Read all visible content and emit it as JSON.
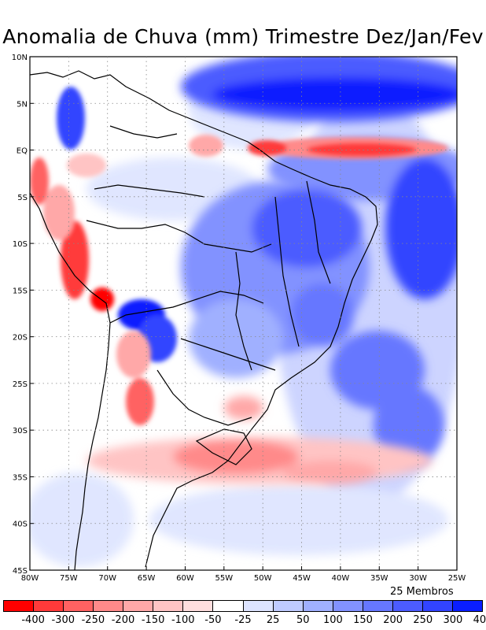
{
  "title": "Anomalia de Chuva (mm) Trimestre Dez/Jan/Fev",
  "members_label": "25 Membros",
  "map": {
    "lon_labels": [
      "80W",
      "75W",
      "70W",
      "65W",
      "60W",
      "55W",
      "50W",
      "45W",
      "40W",
      "35W",
      "30W",
      "25W"
    ],
    "lat_labels": [
      "10N",
      "5N",
      "EQ",
      "5S",
      "10S",
      "15S",
      "20S",
      "25S",
      "30S",
      "35S",
      "40S",
      "45S"
    ],
    "lon_range": [
      -80,
      -25
    ],
    "lat_range": [
      -45,
      10
    ]
  },
  "legend": {
    "colors": [
      "#ff0000",
      "#ff3a3a",
      "#ff6262",
      "#ff8a8a",
      "#ffa8a8",
      "#ffc4c4",
      "#ffdede",
      "#ffffff",
      "#dde4ff",
      "#bfcbff",
      "#a0b0ff",
      "#8292ff",
      "#6677ff",
      "#4c5cff",
      "#3244ff",
      "#0a1eff"
    ],
    "ticks": [
      "-400",
      "-300",
      "-250",
      "-200",
      "-150",
      "-100",
      "-50",
      "-25",
      "25",
      "50",
      "100",
      "150",
      "200",
      "250",
      "300",
      "400"
    ]
  },
  "palette": {
    "strong_blue": "#0a1eff",
    "mid_blue": "#5a6bff",
    "light_blue": "#c8d0ff",
    "strong_red": "#ff1e1e",
    "mid_red": "#ff7a7a",
    "light_red": "#ffc8c8"
  }
}
